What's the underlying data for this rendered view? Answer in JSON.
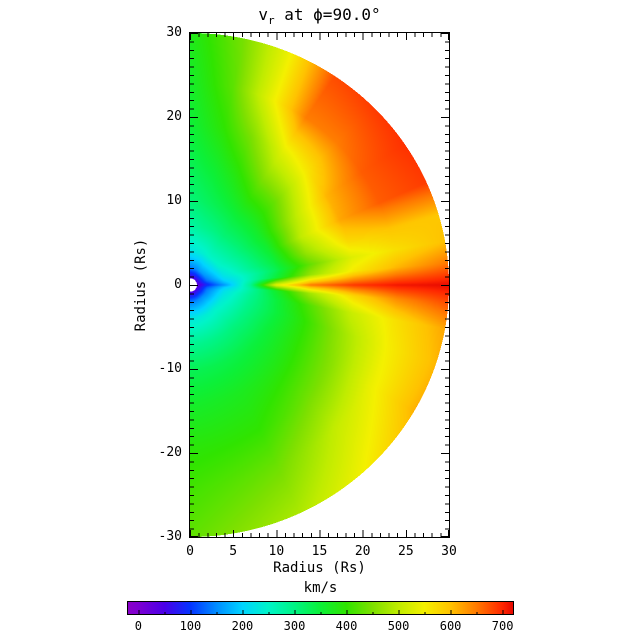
{
  "page": {
    "background": "#ffffff"
  },
  "title": {
    "prefix": "v",
    "subscript": "r",
    "suffix": " at ϕ=90.0°"
  },
  "axes": {
    "x": {
      "label": "Radius (Rs)",
      "min": 0,
      "max": 30,
      "major_ticks": [
        0,
        5,
        10,
        15,
        20,
        25,
        30
      ],
      "minor_step": 1
    },
    "y": {
      "label": "Radius (Rs)",
      "min": -30,
      "max": 30,
      "major_ticks": [
        30,
        20,
        10,
        0,
        -10,
        -20,
        -30
      ],
      "minor_step": 1
    }
  },
  "colorbar": {
    "label": "km/s",
    "ticks": [
      0,
      100,
      200,
      300,
      400,
      500,
      600,
      700
    ],
    "minor_step": 50,
    "bar_value_min": -20,
    "bar_value_max": 720
  },
  "chart_data": {
    "type": "heatmap",
    "title": "v_r at phi=90.0°",
    "xlabel": "Radius (Rs)",
    "ylabel": "Radius (Rs)",
    "units": "km/s",
    "geometry": "meridional half-disk, 0 <= x <= 30 Rs, -30 <= y <= 30 Rs, field shown for r <= 30, white Sun mask at r < 0.8",
    "value_range": [
      0,
      720
    ],
    "outer_radius_rs": 30,
    "mask_inner_radius_rs": 0.8,
    "colormap_stops": [
      [
        -20,
        "#8a00c8"
      ],
      [
        0,
        "#7d00d2"
      ],
      [
        50,
        "#4a00e8"
      ],
      [
        100,
        "#0434ff"
      ],
      [
        150,
        "#008cff"
      ],
      [
        200,
        "#00d4ff"
      ],
      [
        250,
        "#00f4c8"
      ],
      [
        300,
        "#00f484"
      ],
      [
        350,
        "#0cf038"
      ],
      [
        400,
        "#30e400"
      ],
      [
        450,
        "#7ee000"
      ],
      [
        500,
        "#c0ec00"
      ],
      [
        550,
        "#f4f000"
      ],
      [
        600,
        "#ffc200"
      ],
      [
        650,
        "#ff7a00"
      ],
      [
        700,
        "#ff2600"
      ],
      [
        720,
        "#e60800"
      ]
    ],
    "grid": {
      "latitude_deg": [
        -90,
        -65,
        -45,
        -30,
        -18,
        -10,
        -4,
        0,
        5,
        10,
        16,
        24,
        34,
        45,
        56,
        68,
        78,
        90
      ],
      "radius_rs": [
        0,
        1,
        2,
        4,
        7,
        10,
        14,
        19,
        24,
        30
      ],
      "v_kms": [
        [
          0,
          55,
          140,
          230,
          290,
          330,
          360,
          390,
          410,
          430
        ],
        [
          0,
          58,
          148,
          238,
          298,
          338,
          372,
          400,
          440,
          485
        ],
        [
          0,
          60,
          152,
          244,
          304,
          344,
          384,
          440,
          505,
          560
        ],
        [
          0,
          55,
          145,
          238,
          300,
          345,
          395,
          460,
          540,
          612
        ],
        [
          0,
          50,
          140,
          228,
          294,
          340,
          400,
          480,
          552,
          608
        ],
        [
          0,
          45,
          128,
          218,
          288,
          344,
          420,
          508,
          566,
          620
        ],
        [
          0,
          40,
          108,
          196,
          278,
          360,
          480,
          578,
          638,
          678
        ],
        [
          0,
          35,
          90,
          160,
          290,
          530,
          650,
          690,
          710,
          718
        ],
        [
          0,
          40,
          100,
          188,
          268,
          348,
          468,
          558,
          608,
          652
        ],
        [
          0,
          45,
          118,
          208,
          268,
          330,
          430,
          528,
          568,
          600
        ],
        [
          0,
          50,
          134,
          222,
          286,
          344,
          468,
          576,
          596,
          594
        ],
        [
          0,
          55,
          145,
          234,
          296,
          356,
          498,
          618,
          668,
          688
        ],
        [
          0,
          60,
          155,
          246,
          306,
          364,
          478,
          608,
          668,
          694
        ],
        [
          0,
          60,
          160,
          250,
          310,
          360,
          438,
          558,
          648,
          688
        ],
        [
          0,
          60,
          160,
          250,
          310,
          355,
          428,
          528,
          648,
          678
        ],
        [
          0,
          60,
          150,
          240,
          300,
          340,
          385,
          448,
          528,
          538
        ],
        [
          0,
          58,
          146,
          234,
          292,
          326,
          356,
          398,
          428,
          446
        ],
        [
          0,
          55,
          140,
          224,
          278,
          308,
          330,
          350,
          362,
          376
        ]
      ]
    }
  }
}
